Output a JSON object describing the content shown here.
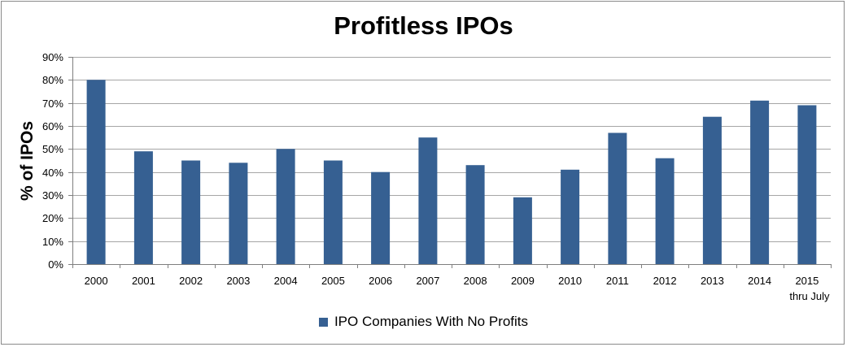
{
  "chart_data": {
    "type": "bar",
    "title": "Profitless IPOs",
    "ylabel": "% of IPOs",
    "xlabel": "",
    "categories": [
      "2000",
      "2001",
      "2002",
      "2003",
      "2004",
      "2005",
      "2006",
      "2007",
      "2008",
      "2009",
      "2010",
      "2011",
      "2012",
      "2013",
      "2014",
      "2015"
    ],
    "category_sublabels": [
      "",
      "",
      "",
      "",
      "",
      "",
      "",
      "",
      "",
      "",
      "",
      "",
      "",
      "",
      "",
      "thru July"
    ],
    "series": [
      {
        "name": "IPO Companies With No Profits",
        "color": "#366092",
        "values": [
          80,
          49,
          45,
          44,
          50,
          45,
          40,
          55,
          43,
          29,
          41,
          57,
          46,
          64,
          71,
          69
        ]
      }
    ],
    "ylim": [
      0,
      90
    ],
    "yticks": [
      0,
      10,
      20,
      30,
      40,
      50,
      60,
      70,
      80,
      90
    ],
    "ytick_labels": [
      "0%",
      "10%",
      "20%",
      "30%",
      "40%",
      "50%",
      "60%",
      "70%",
      "80%",
      "90%"
    ],
    "grid": true,
    "legend_position": "bottom"
  }
}
